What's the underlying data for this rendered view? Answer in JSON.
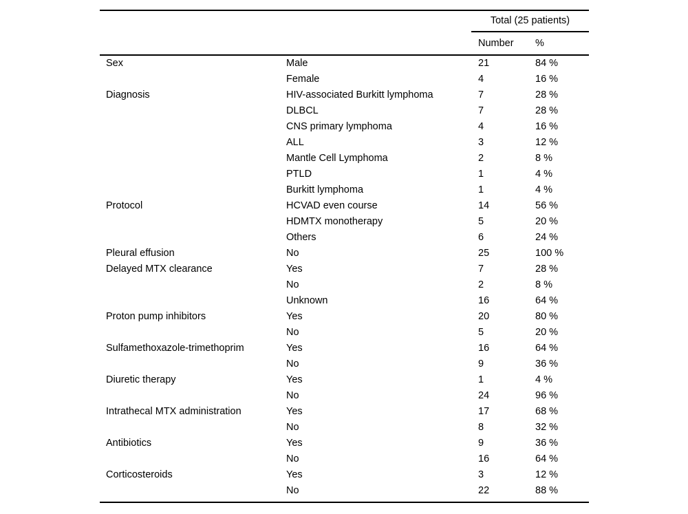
{
  "table": {
    "header": {
      "total_label": "Total (25 patients)",
      "col_number": "Number",
      "col_percent": "%"
    },
    "rows": [
      {
        "category": "Sex",
        "label": "Male",
        "number": "21",
        "percent": "84 %"
      },
      {
        "category": "",
        "label": "Female",
        "number": "4",
        "percent": "16 %"
      },
      {
        "category": "Diagnosis",
        "label": "HIV-associated Burkitt lymphoma",
        "number": "7",
        "percent": "28 %"
      },
      {
        "category": "",
        "label": "DLBCL",
        "number": "7",
        "percent": "28 %"
      },
      {
        "category": "",
        "label": "CNS primary lymphoma",
        "number": "4",
        "percent": "16 %"
      },
      {
        "category": "",
        "label": "ALL",
        "number": "3",
        "percent": "12 %"
      },
      {
        "category": "",
        "label": "Mantle Cell Lymphoma",
        "number": "2",
        "percent": "8 %"
      },
      {
        "category": "",
        "label": "PTLD",
        "number": "1",
        "percent": "4 %"
      },
      {
        "category": "",
        "label": "Burkitt lymphoma",
        "number": "1",
        "percent": "4 %"
      },
      {
        "category": "Protocol",
        "label": "HCVAD even course",
        "number": "14",
        "percent": "56 %"
      },
      {
        "category": "",
        "label": "HDMTX monotherapy",
        "number": "5",
        "percent": "20 %"
      },
      {
        "category": "",
        "label": "Others",
        "number": "6",
        "percent": "24 %"
      },
      {
        "category": "Pleural effusion",
        "label": "No",
        "number": "25",
        "percent": "100 %"
      },
      {
        "category": "Delayed MTX clearance",
        "label": "Yes",
        "number": "7",
        "percent": "28 %"
      },
      {
        "category": "",
        "label": "No",
        "number": "2",
        "percent": "8 %"
      },
      {
        "category": "",
        "label": "Unknown",
        "number": "16",
        "percent": "64 %"
      },
      {
        "category": "Proton pump inhibitors",
        "label": "Yes",
        "number": "20",
        "percent": "80 %"
      },
      {
        "category": "",
        "label": "No",
        "number": "5",
        "percent": "20 %"
      },
      {
        "category": "Sulfamethoxazole-trimethoprim",
        "label": "Yes",
        "number": "16",
        "percent": "64 %"
      },
      {
        "category": "",
        "label": "No",
        "number": "9",
        "percent": "36 %"
      },
      {
        "category": "Diuretic therapy",
        "label": "Yes",
        "number": "1",
        "percent": "4 %"
      },
      {
        "category": "",
        "label": "No",
        "number": "24",
        "percent": "96 %"
      },
      {
        "category": "Intrathecal MTX administration",
        "label": "Yes",
        "number": "17",
        "percent": "68 %"
      },
      {
        "category": "",
        "label": "No",
        "number": "8",
        "percent": "32 %"
      },
      {
        "category": "Antibiotics",
        "label": "Yes",
        "number": "9",
        "percent": "36 %"
      },
      {
        "category": "",
        "label": "No",
        "number": "16",
        "percent": "64 %"
      },
      {
        "category": "Corticosteroids",
        "label": "Yes",
        "number": "3",
        "percent": "12 %"
      },
      {
        "category": "",
        "label": "No",
        "number": "22",
        "percent": "88 %"
      }
    ],
    "colors": {
      "rule": "#000000",
      "text": "#000000",
      "background": "#ffffff"
    }
  }
}
